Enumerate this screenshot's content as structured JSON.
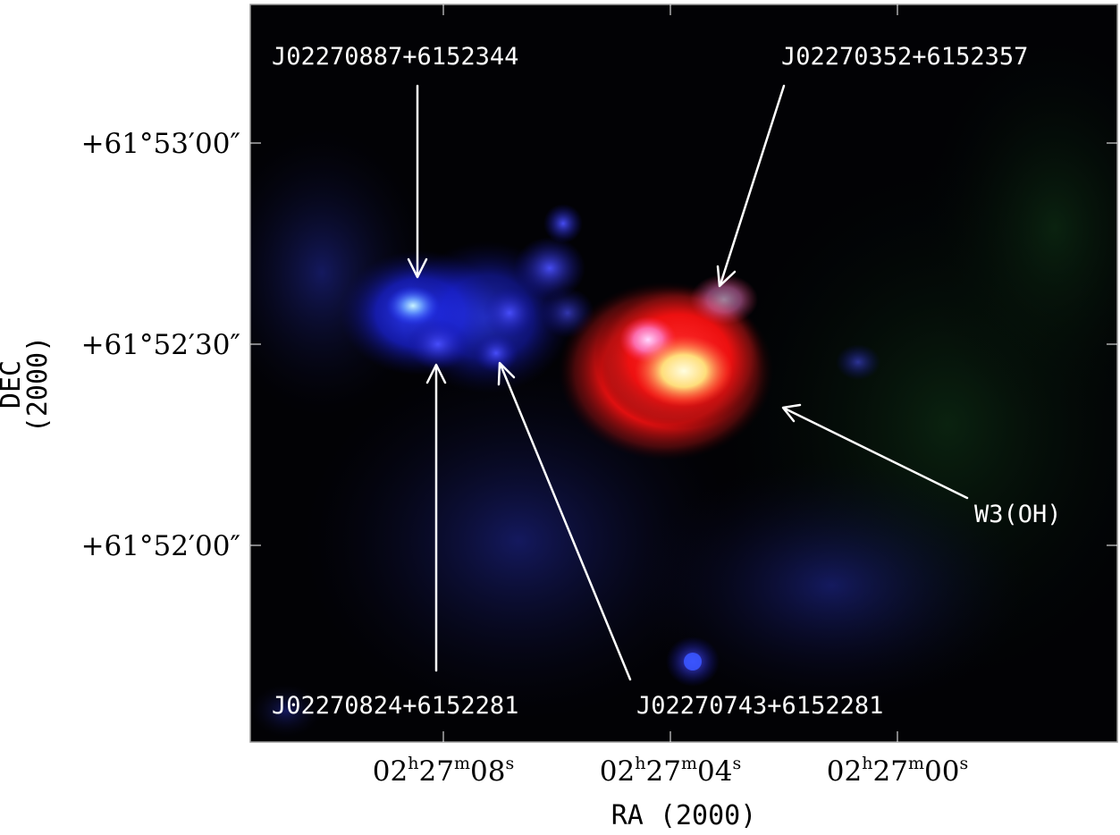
{
  "image": {
    "description_colors": {
      "background": "#020205",
      "frame": "#9a9a9a",
      "annotation": "#ffffff",
      "blue_emission": "#2a35ff",
      "red_emission": "#ff2020",
      "yellow_core": "#fff6a0"
    }
  },
  "axes": {
    "xlabel": "RA (2000)",
    "ylabel": "DEC (2000)",
    "dec_ticks": [
      "+61°53′00″",
      "+61°52′30″",
      "+61°52′00″"
    ],
    "ra_ticks": [
      {
        "h": "02",
        "m": "27",
        "s": "08"
      },
      {
        "h": "02",
        "m": "27",
        "s": "04"
      },
      {
        "h": "02",
        "m": "27",
        "s": "00"
      }
    ],
    "ra_units": {
      "h": "h",
      "m": "m",
      "s": "s"
    }
  },
  "sources": {
    "s1": "J02270887+6152344",
    "s2": "J02270352+6152357",
    "s3": "J02270824+6152281",
    "s4": "J02270743+6152281",
    "s5": "W3(OH)"
  }
}
